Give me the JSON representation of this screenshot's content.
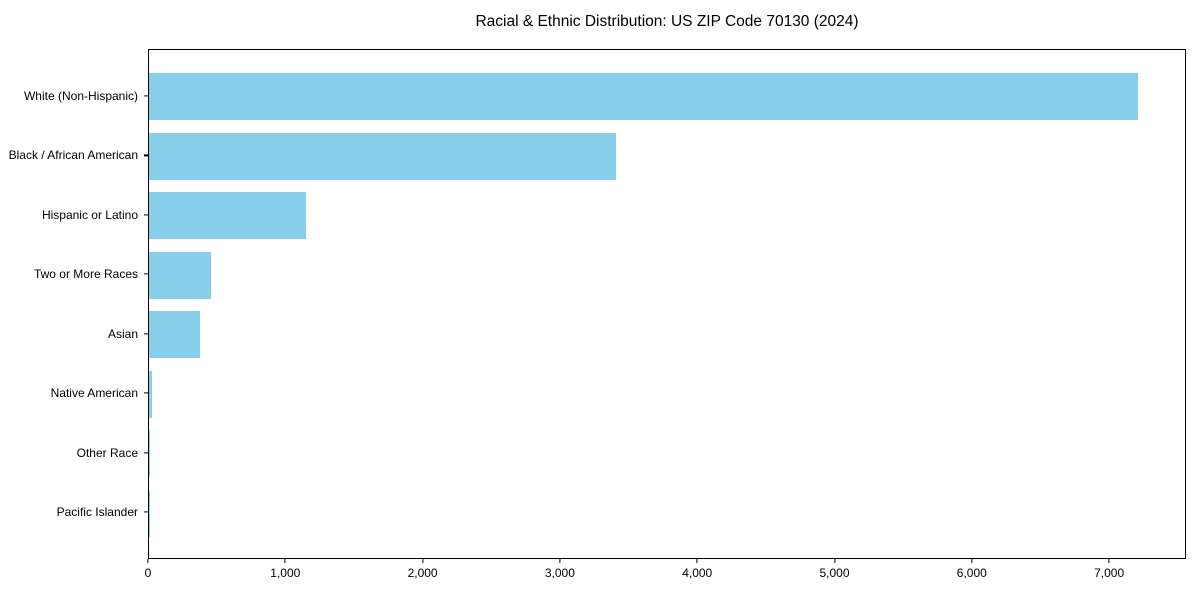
{
  "chart_data": {
    "type": "bar",
    "orientation": "horizontal",
    "title": "Racial & Ethnic Distribution: US ZIP Code 70130 (2024)",
    "categories": [
      "White (Non-Hispanic)",
      "Black / African American",
      "Hispanic or Latino",
      "Two or More Races",
      "Asian",
      "Native American",
      "Other Race",
      "Pacific Islander"
    ],
    "values": [
      7200,
      3400,
      1140,
      450,
      375,
      25,
      8,
      3
    ],
    "xlabel": "",
    "ylabel": "",
    "xlim": [
      0,
      7560
    ],
    "x_ticks": [
      0,
      1000,
      2000,
      3000,
      4000,
      5000,
      6000,
      7000
    ],
    "x_tick_labels": [
      "0",
      "1,000",
      "2,000",
      "3,000",
      "4,000",
      "5,000",
      "6,000",
      "7,000"
    ],
    "bar_color": "#87CEEB",
    "axis_color": "#000000",
    "grid": false,
    "legend_position": "none"
  }
}
